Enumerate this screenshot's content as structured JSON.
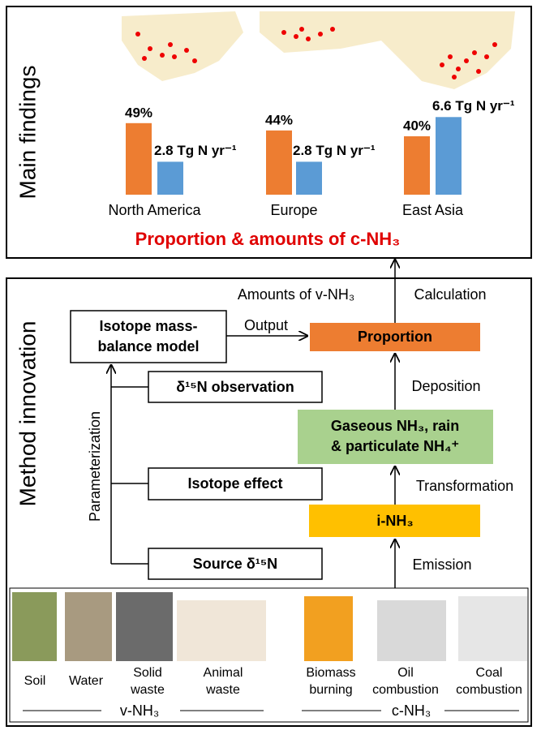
{
  "main_findings": {
    "label": "Main findings",
    "regions": [
      {
        "name": "North America",
        "proportion": 49,
        "proportion_label": "49%",
        "amount": 2.8,
        "amount_label": "2.8 Tg N yr⁻¹"
      },
      {
        "name": "Europe",
        "proportion": 44,
        "proportion_label": "44%",
        "amount": 2.8,
        "amount_label": "2.8 Tg N yr⁻¹"
      },
      {
        "name": "East Asia",
        "proportion": 40,
        "proportion_label": "40%",
        "amount": 6.6,
        "amount_label": "6.6 Tg N yr⁻¹"
      }
    ],
    "caption": "Proportion & amounts of c-NH₃"
  },
  "method": {
    "label": "Method innovation",
    "model": [
      "Isotope mass-",
      "balance model"
    ],
    "output": "Output",
    "proportion": "Proportion",
    "amounts": "Amounts of v-NH₃",
    "calculation": "Calculation",
    "deposition": "Deposition",
    "gaseous": [
      "Gaseous NH₃, rain",
      "& particulate NH₄⁺"
    ],
    "transformation": "Transformation",
    "i_nh3": "i-NH₃",
    "emission": "Emission",
    "observation": "δ¹⁵N observation",
    "isotope_effect": "Isotope effect",
    "source": "Source δ¹⁵N",
    "parameterization": "Parameterization"
  },
  "sources": {
    "v_items": [
      [
        "Soil"
      ],
      [
        "Water"
      ],
      [
        "Solid",
        "waste"
      ],
      [
        "Animal",
        "waste"
      ]
    ],
    "c_items": [
      [
        "Biomass",
        "burning"
      ],
      [
        "Oil",
        "combustion"
      ],
      [
        "Coal",
        "combustion"
      ]
    ],
    "v_label": "v-NH₃",
    "c_label": "c-NH₃"
  }
}
